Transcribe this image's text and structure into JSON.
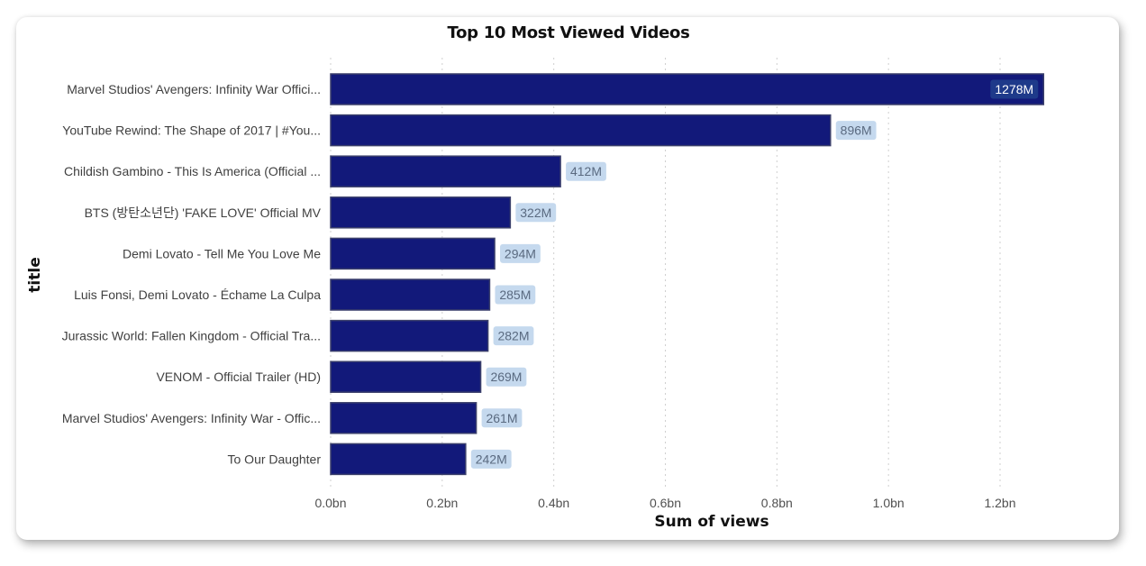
{
  "chart_data": {
    "type": "bar",
    "orientation": "horizontal",
    "title": "Top 10 Most Viewed Videos",
    "xlabel": "Sum of views",
    "ylabel": "title",
    "xlim": [
      0,
      1.2
    ],
    "x_ticks": [
      "0.0bn",
      "0.2bn",
      "0.4bn",
      "0.6bn",
      "0.8bn",
      "1.0bn",
      "1.2bn"
    ],
    "grid": "vertical dotted",
    "categories": [
      "Marvel Studios' Avengers: Infinity War Offici...",
      "YouTube Rewind: The Shape of 2017 | #You...",
      "Childish Gambino - This Is America (Official ...",
      "BTS (방탄소년단) 'FAKE LOVE' Official MV",
      "Demi Lovato - Tell Me You Love Me",
      "Luis Fonsi, Demi Lovato - Échame La Culpa",
      "Jurassic World: Fallen Kingdom - Official Tra...",
      "VENOM - Official Trailer (HD)",
      "Marvel Studios' Avengers: Infinity War - Offic...",
      "To Our Daughter"
    ],
    "values": [
      1.278,
      0.896,
      0.412,
      0.322,
      0.294,
      0.285,
      0.282,
      0.269,
      0.261,
      0.242
    ],
    "data_labels": [
      "1278M",
      "896M",
      "412M",
      "322M",
      "294M",
      "285M",
      "282M",
      "269M",
      "261M",
      "242M"
    ],
    "colors": {
      "bar": "#12197a",
      "bar_border": "#3a3f6b",
      "label_bg_outside": "#c5d9ee",
      "label_text_outside": "#5a6a80",
      "label_bg_inside": "#1e3a8a",
      "label_text_inside": "#ffffff",
      "grid": "#cfcfcf"
    }
  }
}
